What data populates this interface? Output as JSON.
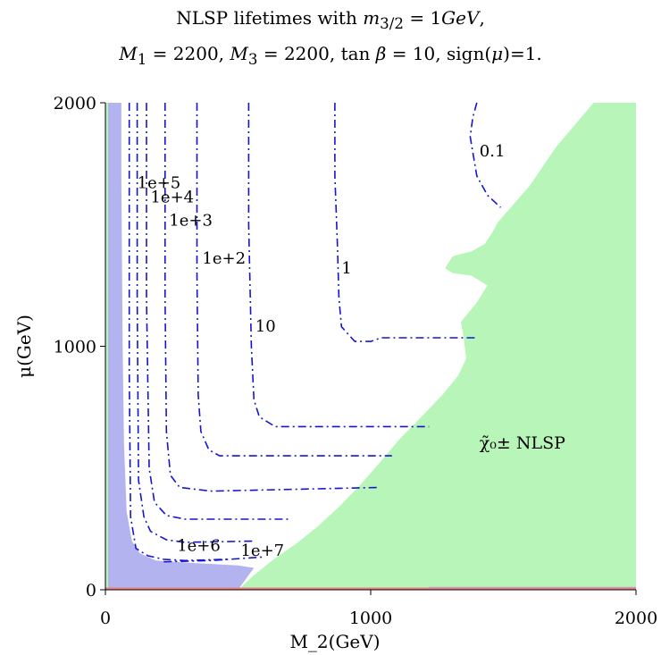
{
  "chart_data": {
    "type": "contour",
    "title_line1": "NLSP lifetimes with m_{3/2} = 1GeV,",
    "title_line2": "M_1 = 2200, M_3 = 2200, tan β = 10, sign(μ)=1.",
    "xlabel": "M_2(GeV)",
    "ylabel": "μ(GeV)",
    "xlim": [
      0,
      2000
    ],
    "ylim": [
      0,
      2000
    ],
    "xticks": [
      0,
      1000,
      2000
    ],
    "yticks": [
      0,
      1000,
      2000
    ],
    "region_label": "χ̃₀± NLSP",
    "colors": {
      "green_region": "#b8f5b8",
      "blue_region": "#b3b3f0",
      "contour": "#1515d0",
      "axis_line_red": "#e88080"
    },
    "contours": [
      {
        "label": "1e+7",
        "points": [
          [
            220,
            115
          ],
          [
            400,
            120
          ],
          [
            600,
            135
          ]
        ]
      },
      {
        "label": "1e+6",
        "points": [
          [
            90,
            2000
          ],
          [
            90,
            900
          ],
          [
            95,
            300
          ],
          [
            115,
            170
          ],
          [
            160,
            140
          ],
          [
            220,
            125
          ],
          [
            300,
            120
          ],
          [
            460,
            125
          ]
        ]
      },
      {
        "label": "1e+5",
        "points": [
          [
            120,
            2000
          ],
          [
            120,
            1200
          ],
          [
            125,
            450
          ],
          [
            145,
            300
          ],
          [
            170,
            240
          ],
          [
            230,
            205
          ],
          [
            300,
            195
          ],
          [
            560,
            200
          ]
        ]
      },
      {
        "label": "1e+4",
        "points": [
          [
            155,
            2000
          ],
          [
            155,
            1200
          ],
          [
            165,
            500
          ],
          [
            185,
            360
          ],
          [
            230,
            305
          ],
          [
            300,
            290
          ],
          [
            690,
            290
          ]
        ]
      },
      {
        "label": "1e+3",
        "points": [
          [
            225,
            2000
          ],
          [
            225,
            1200
          ],
          [
            230,
            650
          ],
          [
            245,
            470
          ],
          [
            280,
            420
          ],
          [
            400,
            405
          ],
          [
            1030,
            420
          ]
        ]
      },
      {
        "label": "1e+2",
        "points": [
          [
            345,
            2000
          ],
          [
            345,
            1300
          ],
          [
            350,
            800
          ],
          [
            360,
            650
          ],
          [
            390,
            575
          ],
          [
            430,
            550
          ],
          [
            1080,
            550
          ]
        ]
      },
      {
        "label": "10",
        "points": [
          [
            540,
            2000
          ],
          [
            540,
            1500
          ],
          [
            550,
            1000
          ],
          [
            560,
            780
          ],
          [
            580,
            710
          ],
          [
            640,
            670
          ],
          [
            1220,
            670
          ]
        ]
      },
      {
        "label": "1",
        "points": [
          [
            865,
            2000
          ],
          [
            865,
            1700
          ],
          [
            875,
            1400
          ],
          [
            880,
            1200
          ],
          [
            890,
            1080
          ],
          [
            940,
            1020
          ],
          [
            1000,
            1020
          ],
          [
            1040,
            1035
          ],
          [
            1400,
            1035
          ]
        ]
      },
      {
        "label": "0.1",
        "points": [
          [
            1400,
            2000
          ],
          [
            1385,
            1940
          ],
          [
            1375,
            1860
          ],
          [
            1400,
            1700
          ],
          [
            1440,
            1620
          ],
          [
            1490,
            1570
          ]
        ]
      }
    ],
    "contour_labels": [
      {
        "text": "1e+5",
        "x": 120,
        "y": 1650
      },
      {
        "text": "1e+4",
        "x": 170,
        "y": 1590
      },
      {
        "text": "1e+3",
        "x": 240,
        "y": 1495
      },
      {
        "text": "1e+2",
        "x": 365,
        "y": 1340
      },
      {
        "text": "10",
        "x": 565,
        "y": 1060
      },
      {
        "text": "1",
        "x": 890,
        "y": 1300
      },
      {
        "text": "0.1",
        "x": 1410,
        "y": 1780
      },
      {
        "text": "1e+6",
        "x": 270,
        "y": 160
      },
      {
        "text": "1e+7",
        "x": 510,
        "y": 140
      }
    ],
    "region_label_pos": {
      "x": 1410,
      "y": 580
    },
    "green_boundary": [
      [
        500,
        0
      ],
      [
        560,
        60
      ],
      [
        640,
        130
      ],
      [
        720,
        190
      ],
      [
        800,
        260
      ],
      [
        880,
        340
      ],
      [
        960,
        430
      ],
      [
        1040,
        530
      ],
      [
        1110,
        620
      ],
      [
        1200,
        720
      ],
      [
        1270,
        800
      ],
      [
        1330,
        880
      ],
      [
        1360,
        950
      ],
      [
        1350,
        1040
      ],
      [
        1340,
        1100
      ],
      [
        1400,
        1180
      ],
      [
        1440,
        1250
      ],
      [
        1380,
        1290
      ],
      [
        1310,
        1300
      ],
      [
        1280,
        1320
      ],
      [
        1310,
        1370
      ],
      [
        1380,
        1390
      ],
      [
        1430,
        1420
      ],
      [
        1460,
        1470
      ],
      [
        1480,
        1510
      ],
      [
        1520,
        1560
      ],
      [
        1600,
        1660
      ],
      [
        1700,
        1820
      ],
      [
        1840,
        2000
      ],
      [
        2000,
        2000
      ],
      [
        2000,
        0
      ]
    ]
  }
}
